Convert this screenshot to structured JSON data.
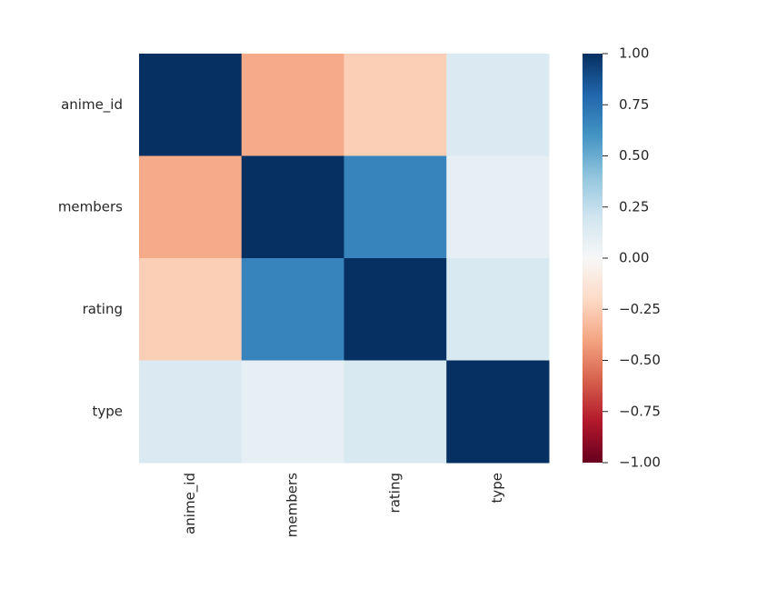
{
  "chart_data": {
    "type": "heatmap",
    "x_categories": [
      "anime_id",
      "members",
      "rating",
      "type"
    ],
    "y_categories": [
      "anime_id",
      "members",
      "rating",
      "type"
    ],
    "values": [
      [
        1,
        -0.38,
        -0.25,
        0.15
      ],
      [
        -0.38,
        1,
        0.67,
        0.09
      ],
      [
        -0.25,
        0.67,
        1,
        0.16
      ],
      [
        0.15,
        0.09,
        0.16,
        1
      ]
    ],
    "colormap": "RdBu",
    "clim": [
      -1,
      1
    ],
    "cticks": [
      {
        "value": 1,
        "label": "1.00"
      },
      {
        "value": 0.75,
        "label": "0.75"
      },
      {
        "value": 0.5,
        "label": "0.50"
      },
      {
        "value": 0.25,
        "label": "0.25"
      },
      {
        "value": 0,
        "label": "0.00"
      },
      {
        "value": -0.25,
        "label": "−0.25"
      },
      {
        "value": -0.5,
        "label": "−0.50"
      },
      {
        "value": -0.75,
        "label": "−0.75"
      },
      {
        "value": -1,
        "label": "−1.00"
      }
    ]
  }
}
